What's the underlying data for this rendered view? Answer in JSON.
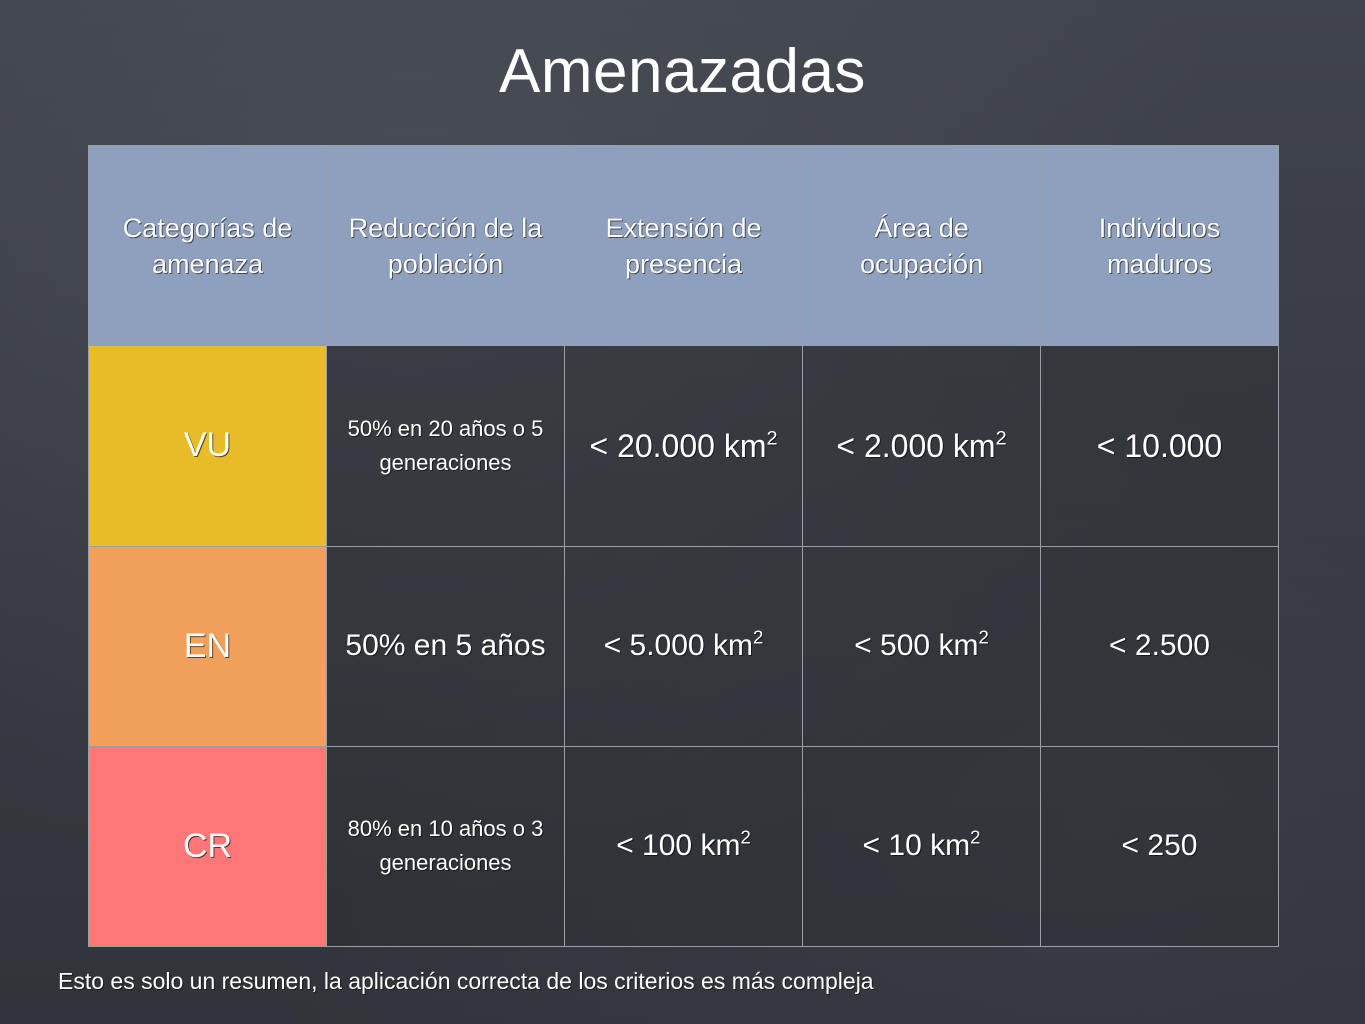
{
  "title": "Amenazadas",
  "table": {
    "headers": [
      "Categorías de amenaza",
      "Reducción de la población",
      "Extensión de presencia",
      "Área de ocupación",
      "Individuos maduros"
    ],
    "rows": [
      {
        "category": "VU",
        "category_color": "#e8bb28",
        "reduction": "50% en 20 años o 5 generaciones",
        "extent_value": "< 20.000 km",
        "extent_unit_exp": "2",
        "area_value": "< 2.000 km",
        "area_unit_exp": "2",
        "individuals": "< 10.000"
      },
      {
        "category": "EN",
        "category_color": "#f0a05a",
        "reduction": "50% en 5 años",
        "extent_value": "< 5.000 km",
        "extent_unit_exp": "2",
        "area_value": "< 500 km",
        "area_unit_exp": "2",
        "individuals": "< 2.500"
      },
      {
        "category": "CR",
        "category_color": "#ff7676",
        "reduction": "80% en 10 años o 3 generaciones",
        "extent_value": "< 100 km",
        "extent_unit_exp": "2",
        "area_value": "< 10 km",
        "area_unit_exp": "2",
        "individuals": "< 250"
      }
    ]
  },
  "footnote": "Esto es solo un resumen, la aplicación correcta de los criterios es más compleja",
  "colors": {
    "header_bg": "#8ea0bd",
    "background": "#3a3d43"
  }
}
